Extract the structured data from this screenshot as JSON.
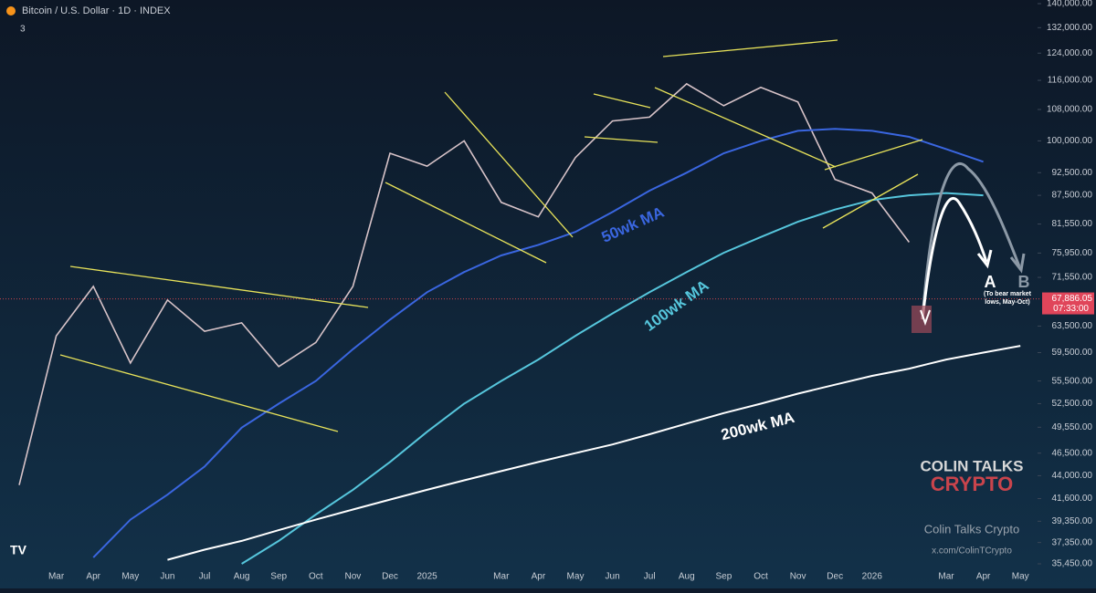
{
  "chart_data": {
    "type": "line",
    "title": "Bitcoin / U.S. Dollar · 1D · INDEX",
    "indicator_count": "3",
    "categories": [
      null,
      "Mar",
      "Apr",
      "May",
      "Jun",
      "Jul",
      "Aug",
      "Sep",
      "Oct",
      "Nov",
      "Dec",
      "2025",
      null,
      "Mar",
      "Apr",
      "May",
      "Jun",
      "Jul",
      "Aug",
      "Sep",
      "Oct",
      "Nov",
      "Dec",
      "2026",
      null,
      "Mar",
      "Apr",
      "May"
    ],
    "series": [
      {
        "name": "Bitcoin",
        "color": "#d7c3c8",
        "values": [
          43000,
          62000,
          70000,
          58000,
          67700,
          62700,
          64000,
          57500,
          61000,
          70000,
          97000,
          94000,
          100000,
          86000,
          83000,
          96000,
          105000,
          106000,
          115000,
          109000,
          114000,
          110000,
          91000,
          88000,
          78000,
          null,
          null,
          null
        ]
      },
      {
        "name": "50wk MA",
        "color": "#3a66e0",
        "values": [
          null,
          null,
          36000,
          39500,
          42000,
          45000,
          49500,
          52500,
          55500,
          60000,
          64500,
          69000,
          72500,
          75500,
          77500,
          80000,
          84000,
          88500,
          92500,
          97000,
          100000,
          102500,
          103000,
          102500,
          101000,
          98000,
          95000,
          null
        ]
      },
      {
        "name": "100wk MA",
        "color": "#56c6dc",
        "values": [
          null,
          null,
          null,
          null,
          null,
          null,
          35450,
          37500,
          40000,
          42500,
          45500,
          49000,
          52500,
          55500,
          58500,
          62000,
          65500,
          69000,
          72500,
          76000,
          79000,
          82000,
          84500,
          86500,
          87500,
          88000,
          87500,
          null
        ]
      },
      {
        "name": "200wk MA",
        "color": "#ffffff",
        "values": [
          null,
          null,
          null,
          null,
          35800,
          36700,
          37500,
          38500,
          39500,
          40500,
          41500,
          42500,
          43500,
          44500,
          45500,
          46500,
          47500,
          48700,
          50000,
          51300,
          52500,
          53800,
          55000,
          56200,
          57200,
          58500,
          59500,
          60500
        ]
      }
    ],
    "log_scale": true,
    "ylim": [
      35450,
      140000
    ],
    "yticks": [
      {
        "value": 140000,
        "label": "140,000.00"
      },
      {
        "value": 132000,
        "label": "132,000.00"
      },
      {
        "value": 124000,
        "label": "124,000.00"
      },
      {
        "value": 116000,
        "label": "116,000.00"
      },
      {
        "value": 108000,
        "label": "108,000.00"
      },
      {
        "value": 100000,
        "label": "100,000.00"
      },
      {
        "value": 92500,
        "label": "92,500.00"
      },
      {
        "value": 87500,
        "label": "87,500.00"
      },
      {
        "value": 81550,
        "label": "81,550.00"
      },
      {
        "value": 75950,
        "label": "75,950.00"
      },
      {
        "value": 71550,
        "label": "71,550.00"
      },
      {
        "value": 63500,
        "label": "63,500.00"
      },
      {
        "value": 59500,
        "label": "59,500.00"
      },
      {
        "value": 55500,
        "label": "55,500.00"
      },
      {
        "value": 52500,
        "label": "52,500.00"
      },
      {
        "value": 49550,
        "label": "49,550.00"
      },
      {
        "value": 46500,
        "label": "46,500.00"
      },
      {
        "value": 44000,
        "label": "44,000.00"
      },
      {
        "value": 41600,
        "label": "41,600.00"
      },
      {
        "value": 39350,
        "label": "39,350.00"
      },
      {
        "value": 37350,
        "label": "37,350.00"
      },
      {
        "value": 35450,
        "label": "35,450.00"
      }
    ],
    "last_price": {
      "value": 67886.05,
      "label": "67,886.05"
    },
    "countdown": "07:33:00",
    "annotations": {
      "ma50": "50wk MA",
      "ma100": "100wk MA",
      "ma200": "200wk MA",
      "a": "A",
      "b": "B",
      "a_note": "(To bear market lows, May-Oct)"
    },
    "watermark": {
      "line1": "COLIN TALKS",
      "line2": "CRYPTO",
      "name": "Colin Talks Crypto",
      "handle": "x.com/ColinTCrypto"
    }
  }
}
